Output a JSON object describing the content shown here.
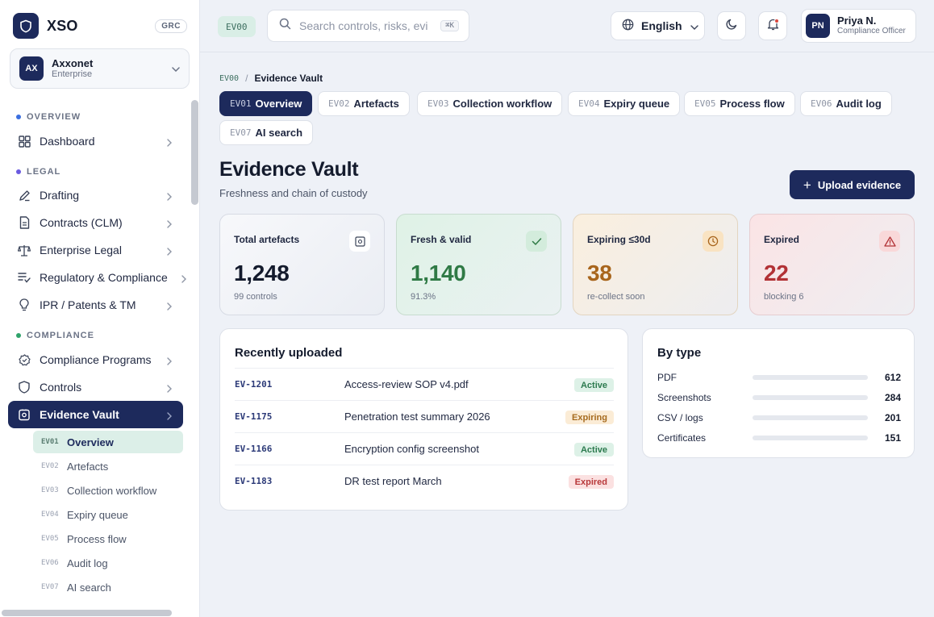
{
  "brand": {
    "name": "XSO",
    "badge": "GRC"
  },
  "org": {
    "initials": "AX",
    "name": "Axxonet",
    "plan": "Enterprise"
  },
  "sidebar": {
    "sections": [
      {
        "label": "OVERVIEW",
        "color": "#3b6fe0"
      },
      {
        "label": "LEGAL",
        "color": "#6a5ae0"
      },
      {
        "label": "COMPLIANCE",
        "color": "#2fa36b"
      }
    ],
    "items": [
      {
        "label": "Dashboard",
        "icon": "grid-icon"
      },
      {
        "label": "Drafting",
        "icon": "pen-icon"
      },
      {
        "label": "Contracts (CLM)",
        "icon": "document-icon"
      },
      {
        "label": "Enterprise Legal",
        "icon": "scale-icon"
      },
      {
        "label": "Regulatory & Compliance",
        "icon": "list-check-icon"
      },
      {
        "label": "IPR / Patents & TM",
        "icon": "lightbulb-icon"
      },
      {
        "label": "Compliance Programs",
        "icon": "badge-icon"
      },
      {
        "label": "Controls",
        "icon": "shield-icon"
      },
      {
        "label": "Evidence Vault",
        "icon": "vault-icon"
      }
    ],
    "subitems": [
      {
        "code": "EV01",
        "label": "Overview"
      },
      {
        "code": "EV02",
        "label": "Artefacts"
      },
      {
        "code": "EV03",
        "label": "Collection workflow"
      },
      {
        "code": "EV04",
        "label": "Expiry queue"
      },
      {
        "code": "EV05",
        "label": "Process flow"
      },
      {
        "code": "EV06",
        "label": "Audit log"
      },
      {
        "code": "EV07",
        "label": "AI search"
      }
    ]
  },
  "topbar": {
    "code": "EV00",
    "search_placeholder": "Search controls, risks, evidence",
    "search_shortcut": "⌘K",
    "language": "English",
    "user_initials": "PN",
    "user_name": "Priya N.",
    "user_role": "Compliance Officer"
  },
  "breadcrumb": {
    "code": "EV00",
    "separator": "/",
    "current": "Evidence Vault"
  },
  "tabs": [
    {
      "code": "EV01",
      "label": "Overview"
    },
    {
      "code": "EV02",
      "label": "Artefacts"
    },
    {
      "code": "EV03",
      "label": "Collection workflow"
    },
    {
      "code": "EV04",
      "label": "Expiry queue"
    },
    {
      "code": "EV05",
      "label": "Process flow"
    },
    {
      "code": "EV06",
      "label": "Audit log"
    },
    {
      "code": "EV07",
      "label": "AI search"
    }
  ],
  "page": {
    "title": "Evidence Vault",
    "subtitle": "Freshness and chain of custody",
    "upload_label": "Upload evidence"
  },
  "stats": [
    {
      "label": "Total artefacts",
      "value": "1,248",
      "note": "99 controls",
      "color": "#141b2d",
      "icon": "vault-icon"
    },
    {
      "label": "Fresh & valid",
      "value": "1,140",
      "note": "91.3%",
      "color": "#2f7a45",
      "icon": "check-icon"
    },
    {
      "label": "Expiring ≤30d",
      "value": "38",
      "note": "re-collect soon",
      "color": "#a8651c",
      "icon": "clock-icon"
    },
    {
      "label": "Expired",
      "value": "22",
      "note": "blocking 6",
      "color": "#b23236",
      "icon": "warning-icon"
    }
  ],
  "recent": {
    "title": "Recently uploaded",
    "rows": [
      {
        "id": "EV-1201",
        "name": "Access-review SOP v4.pdf",
        "status": "Active"
      },
      {
        "id": "EV-1175",
        "name": "Penetration test summary 2026",
        "status": "Expiring"
      },
      {
        "id": "EV-1166",
        "name": "Encryption config screenshot",
        "status": "Active"
      },
      {
        "id": "EV-1183",
        "name": "DR test report March",
        "status": "Expired"
      }
    ]
  },
  "by_type": {
    "title": "By type",
    "rows": [
      {
        "label": "PDF",
        "value": "612"
      },
      {
        "label": "Screenshots",
        "value": "284"
      },
      {
        "label": "CSV / logs",
        "value": "201"
      },
      {
        "label": "Certificates",
        "value": "151"
      }
    ]
  }
}
